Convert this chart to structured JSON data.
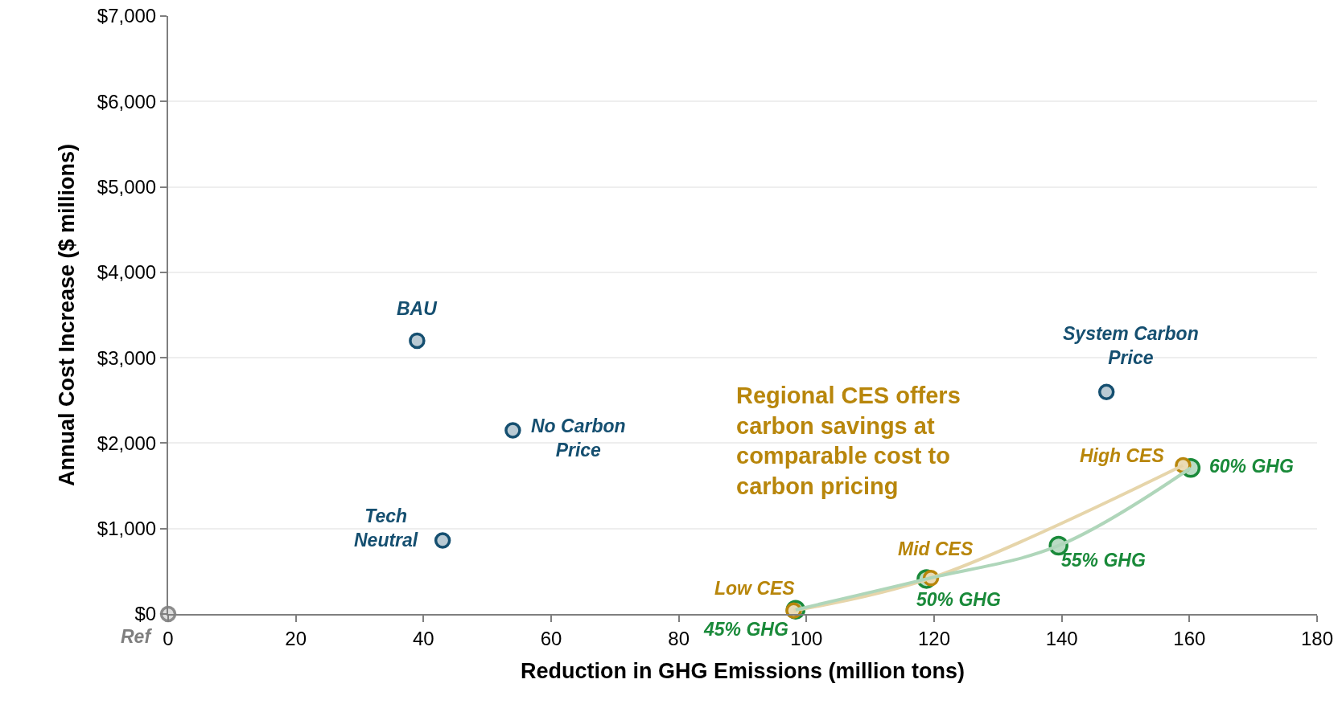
{
  "chart_data": {
    "type": "scatter",
    "xlabel": "Reduction in GHG Emissions (million tons)",
    "ylabel": "Annual Cost Increase ($ millions)",
    "xlim": [
      0,
      180
    ],
    "xticks": [
      0,
      20,
      40,
      60,
      80,
      100,
      120,
      140,
      160,
      180
    ],
    "ylim": [
      0,
      7000
    ],
    "yticks": [
      {
        "value": 0,
        "label": "$0"
      },
      {
        "value": 1000,
        "label": "$1,000"
      },
      {
        "value": 2000,
        "label": "$2,000"
      },
      {
        "value": 3000,
        "label": "$3,000"
      },
      {
        "value": 4000,
        "label": "$4,000"
      },
      {
        "value": 5000,
        "label": "$5,000"
      },
      {
        "value": 6000,
        "label": "$6,000"
      },
      {
        "value": 7000,
        "label": "$7,000"
      }
    ],
    "grid": "y",
    "marker": "circle",
    "series": [
      {
        "color": "#8c8c8c",
        "x": [
          0
        ],
        "values": [
          0
        ]
      },
      {
        "color": "#154f70",
        "x": [
          39,
          54,
          43,
          147
        ],
        "values": [
          3200,
          2150,
          860,
          2600
        ]
      },
      {
        "type": "line",
        "color": "#1a8a3a",
        "line_style": "solid",
        "x": [
          98.3,
          118.8,
          139.5,
          160.2
        ],
        "values": [
          50,
          410,
          800,
          1710
        ]
      },
      {
        "type": "line",
        "color": "#b8860b",
        "line_style": "solid",
        "x": [
          98,
          119.5,
          159
        ],
        "values": [
          40,
          420,
          1740
        ]
      }
    ],
    "annotations": [
      {
        "text": "Ref",
        "x": 0,
        "y": 0
      },
      {
        "text": "BAU",
        "x": 39,
        "y": 3200
      },
      {
        "text": "No Carbon Price",
        "x": 54,
        "y": 2150
      },
      {
        "text": "Tech Neutral",
        "x": 43,
        "y": 860
      },
      {
        "text": "System Carbon Price",
        "x": 147,
        "y": 2600
      },
      {
        "text": "45% GHG",
        "x": 98.3,
        "y": 50
      },
      {
        "text": "50% GHG",
        "x": 118.8,
        "y": 410
      },
      {
        "text": "55% GHG",
        "x": 139.5,
        "y": 800
      },
      {
        "text": "60% GHG",
        "x": 160.2,
        "y": 1710
      },
      {
        "text": "Low CES",
        "x": 98,
        "y": 40
      },
      {
        "text": "Mid CES",
        "x": 119.5,
        "y": 420
      },
      {
        "text": "High CES",
        "x": 159,
        "y": 1740
      },
      "Regional CES offers carbon savings at comparable cost to carbon pricing"
    ]
  }
}
